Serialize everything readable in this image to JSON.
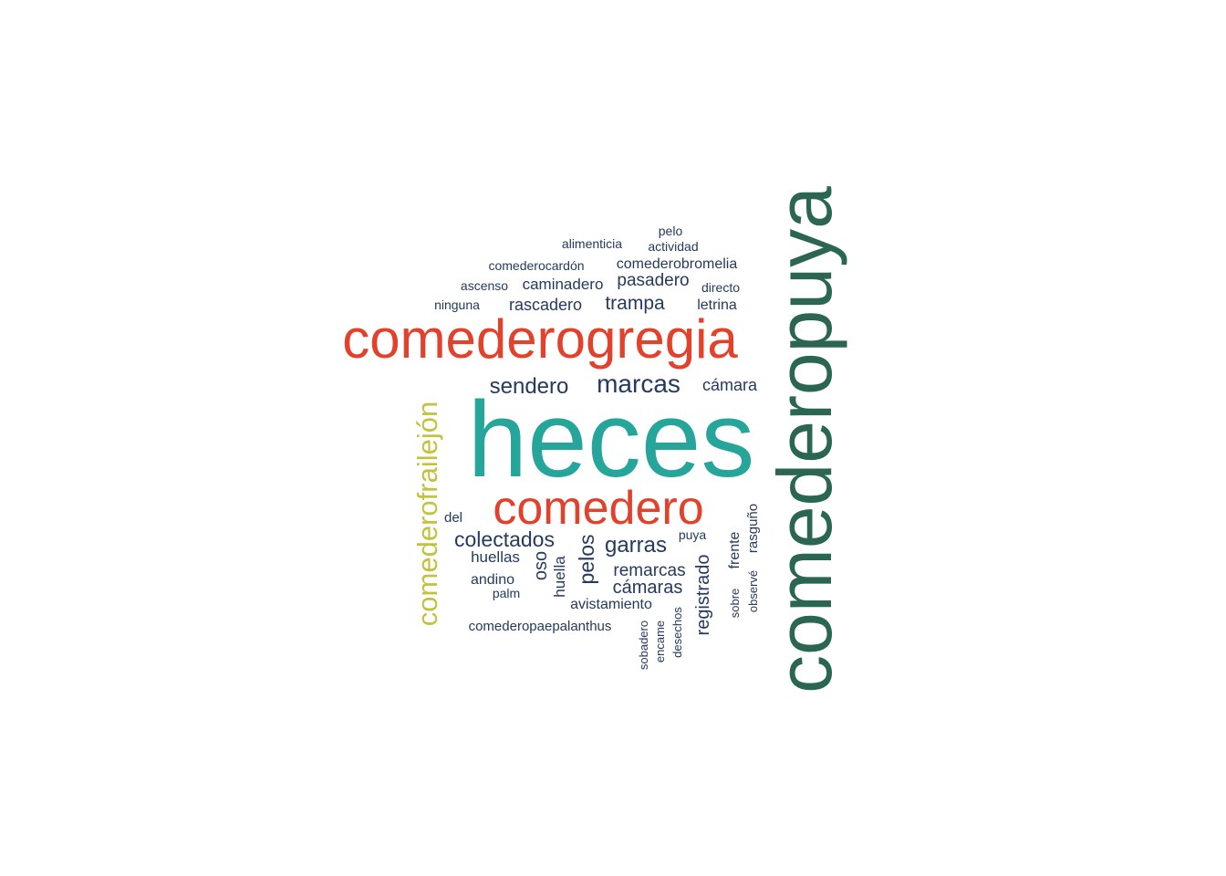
{
  "palette": {
    "navy": "#243a5e",
    "teal": "#26a69a",
    "red": "#e2412b",
    "olive": "#c2c23c",
    "green": "#2b6653"
  },
  "words": [
    {
      "id": "heces",
      "text": "heces",
      "color": "teal"
    },
    {
      "id": "comederopuya",
      "text": "comederopuya",
      "color": "green"
    },
    {
      "id": "comederogregia",
      "text": "comederogregia",
      "color": "red"
    },
    {
      "id": "comedero",
      "text": "comedero",
      "color": "red"
    },
    {
      "id": "comederofrailejon",
      "text": "comederofrailejón",
      "color": "olive"
    },
    {
      "id": "marcas",
      "text": "marcas",
      "color": "navy"
    },
    {
      "id": "sendero",
      "text": "sendero",
      "color": "navy"
    },
    {
      "id": "camara",
      "text": "cámara",
      "color": "navy"
    },
    {
      "id": "colectados",
      "text": "colectados",
      "color": "navy"
    },
    {
      "id": "garras",
      "text": "garras",
      "color": "navy"
    },
    {
      "id": "pelos",
      "text": "pelos",
      "color": "navy"
    },
    {
      "id": "oso",
      "text": "oso",
      "color": "navy"
    },
    {
      "id": "huella",
      "text": "huella",
      "color": "navy"
    },
    {
      "id": "huellas",
      "text": "huellas",
      "color": "navy"
    },
    {
      "id": "andino",
      "text": "andino",
      "color": "navy"
    },
    {
      "id": "palm",
      "text": "palm",
      "color": "navy"
    },
    {
      "id": "del",
      "text": "del",
      "color": "navy"
    },
    {
      "id": "remarcas",
      "text": "remarcas",
      "color": "navy"
    },
    {
      "id": "camaras",
      "text": "cámaras",
      "color": "navy"
    },
    {
      "id": "avistamiento",
      "text": "avistamiento",
      "color": "navy"
    },
    {
      "id": "comederopaepalanthus",
      "text": "comederopaepalanthus",
      "color": "navy"
    },
    {
      "id": "registrado",
      "text": "registrado",
      "color": "navy"
    },
    {
      "id": "puya",
      "text": "puya",
      "color": "navy"
    },
    {
      "id": "frente",
      "text": "frente",
      "color": "navy"
    },
    {
      "id": "sobre",
      "text": "sobre",
      "color": "navy"
    },
    {
      "id": "rasguno",
      "text": "rasguño",
      "color": "navy"
    },
    {
      "id": "observe",
      "text": "observé",
      "color": "navy"
    },
    {
      "id": "sobadero",
      "text": "sobadero",
      "color": "navy"
    },
    {
      "id": "encame",
      "text": "encame",
      "color": "navy"
    },
    {
      "id": "desechos",
      "text": "desechos",
      "color": "navy"
    },
    {
      "id": "trampa",
      "text": "trampa",
      "color": "navy"
    },
    {
      "id": "rascadero",
      "text": "rascadero",
      "color": "navy"
    },
    {
      "id": "letrina",
      "text": "letrina",
      "color": "navy"
    },
    {
      "id": "pasadero",
      "text": "pasadero",
      "color": "navy"
    },
    {
      "id": "caminadero",
      "text": "caminadero",
      "color": "navy"
    },
    {
      "id": "directo",
      "text": "directo",
      "color": "navy"
    },
    {
      "id": "ascenso",
      "text": "ascenso",
      "color": "navy"
    },
    {
      "id": "ninguna",
      "text": "ninguna",
      "color": "navy"
    },
    {
      "id": "comederocardon",
      "text": "comederocardón",
      "color": "navy"
    },
    {
      "id": "comederobromelia",
      "text": "comederobromelia",
      "color": "navy"
    },
    {
      "id": "alimenticia",
      "text": "alimenticia",
      "color": "navy"
    },
    {
      "id": "actividad",
      "text": "actividad",
      "color": "navy"
    },
    {
      "id": "pelo",
      "text": "pelo",
      "color": "navy"
    }
  ]
}
